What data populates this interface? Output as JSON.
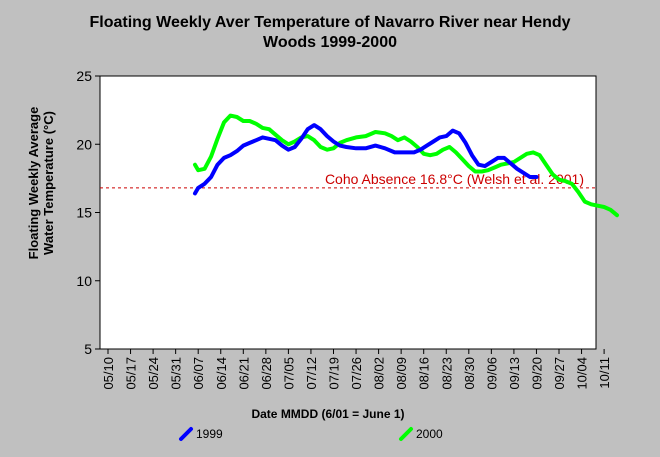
{
  "chart_data": {
    "type": "line",
    "title_line1": "Floating Weekly Aver Temperature of Navarro River near Hendy",
    "title_line2": "Woods 1999-2000",
    "ylabel_line1": "Floating Weekly Average",
    "ylabel_line2": "Water Temperature (°C)",
    "xlabel": "Date MMDD (6/01 = June 1)",
    "ylim": [
      5,
      25
    ],
    "yticks": [
      5,
      10,
      15,
      20,
      25
    ],
    "xtick_labels": [
      "05/10",
      "05/17",
      "05/24",
      "05/31",
      "06/07",
      "06/14",
      "06/21",
      "06/28",
      "07/05",
      "07/12",
      "07/19",
      "07/26",
      "08/02",
      "08/09",
      "08/16",
      "08/23",
      "08/30",
      "09/06",
      "09/13",
      "09/20",
      "09/27",
      "10/04",
      "10/11"
    ],
    "grid": false,
    "legend_position": "bottom",
    "threshold": {
      "value": 16.8,
      "label": "Coho Absence 16.8°C (Welsh et al. 2001)",
      "color": "#cc0000"
    },
    "series": [
      {
        "name": "1999",
        "color": "#0000ff",
        "points": [
          [
            "06/06",
            16.4
          ],
          [
            "06/07",
            16.8
          ],
          [
            "06/09",
            17.1
          ],
          [
            "06/11",
            17.6
          ],
          [
            "06/13",
            18.5
          ],
          [
            "06/15",
            19.0
          ],
          [
            "06/17",
            19.2
          ],
          [
            "06/19",
            19.5
          ],
          [
            "06/21",
            19.9
          ],
          [
            "06/23",
            20.1
          ],
          [
            "06/25",
            20.3
          ],
          [
            "06/27",
            20.5
          ],
          [
            "06/29",
            20.4
          ],
          [
            "07/01",
            20.3
          ],
          [
            "07/03",
            19.9
          ],
          [
            "07/05",
            19.6
          ],
          [
            "07/07",
            19.8
          ],
          [
            "07/09",
            20.4
          ],
          [
            "07/11",
            21.1
          ],
          [
            "07/13",
            21.4
          ],
          [
            "07/15",
            21.1
          ],
          [
            "07/17",
            20.6
          ],
          [
            "07/19",
            20.2
          ],
          [
            "07/21",
            19.9
          ],
          [
            "07/23",
            19.8
          ],
          [
            "07/26",
            19.7
          ],
          [
            "07/29",
            19.7
          ],
          [
            "08/01",
            19.9
          ],
          [
            "08/04",
            19.7
          ],
          [
            "08/07",
            19.4
          ],
          [
            "08/10",
            19.4
          ],
          [
            "08/13",
            19.4
          ],
          [
            "08/15",
            19.6
          ],
          [
            "08/17",
            19.9
          ],
          [
            "08/19",
            20.2
          ],
          [
            "08/21",
            20.5
          ],
          [
            "08/23",
            20.6
          ],
          [
            "08/25",
            21.0
          ],
          [
            "08/27",
            20.8
          ],
          [
            "08/29",
            20.1
          ],
          [
            "08/31",
            19.2
          ],
          [
            "09/02",
            18.5
          ],
          [
            "09/04",
            18.4
          ],
          [
            "09/06",
            18.7
          ],
          [
            "09/08",
            19.0
          ],
          [
            "09/10",
            19.0
          ],
          [
            "09/12",
            18.6
          ],
          [
            "09/14",
            18.2
          ],
          [
            "09/16",
            17.9
          ],
          [
            "09/18",
            17.6
          ],
          [
            "09/20",
            17.6
          ]
        ]
      },
      {
        "name": "2000",
        "color": "#00ff00",
        "points": [
          [
            "06/06",
            18.5
          ],
          [
            "06/07",
            18.1
          ],
          [
            "06/09",
            18.2
          ],
          [
            "06/11",
            19.1
          ],
          [
            "06/13",
            20.4
          ],
          [
            "06/15",
            21.6
          ],
          [
            "06/17",
            22.1
          ],
          [
            "06/19",
            22.0
          ],
          [
            "06/21",
            21.7
          ],
          [
            "06/23",
            21.7
          ],
          [
            "06/25",
            21.5
          ],
          [
            "06/27",
            21.2
          ],
          [
            "06/29",
            21.1
          ],
          [
            "07/01",
            20.7
          ],
          [
            "07/03",
            20.3
          ],
          [
            "07/05",
            20.0
          ],
          [
            "07/07",
            20.2
          ],
          [
            "07/09",
            20.5
          ],
          [
            "07/11",
            20.6
          ],
          [
            "07/13",
            20.3
          ],
          [
            "07/15",
            19.8
          ],
          [
            "07/17",
            19.6
          ],
          [
            "07/19",
            19.7
          ],
          [
            "07/21",
            20.1
          ],
          [
            "07/23",
            20.3
          ],
          [
            "07/26",
            20.5
          ],
          [
            "07/29",
            20.6
          ],
          [
            "08/01",
            20.9
          ],
          [
            "08/04",
            20.8
          ],
          [
            "08/06",
            20.6
          ],
          [
            "08/08",
            20.3
          ],
          [
            "08/10",
            20.5
          ],
          [
            "08/12",
            20.2
          ],
          [
            "08/14",
            19.8
          ],
          [
            "08/16",
            19.3
          ],
          [
            "08/18",
            19.2
          ],
          [
            "08/20",
            19.3
          ],
          [
            "08/22",
            19.6
          ],
          [
            "08/24",
            19.8
          ],
          [
            "08/26",
            19.4
          ],
          [
            "08/28",
            18.9
          ],
          [
            "08/30",
            18.4
          ],
          [
            "09/01",
            18.0
          ],
          [
            "09/03",
            18.0
          ],
          [
            "09/05",
            18.1
          ],
          [
            "09/07",
            18.3
          ],
          [
            "09/09",
            18.5
          ],
          [
            "09/11",
            18.6
          ],
          [
            "09/13",
            18.7
          ],
          [
            "09/15",
            19.0
          ],
          [
            "09/17",
            19.3
          ],
          [
            "09/19",
            19.4
          ],
          [
            "09/21",
            19.2
          ],
          [
            "09/23",
            18.5
          ],
          [
            "09/25",
            17.8
          ],
          [
            "09/27",
            17.4
          ],
          [
            "09/29",
            17.3
          ],
          [
            "10/01",
            17.1
          ],
          [
            "10/03",
            16.5
          ],
          [
            "10/05",
            15.8
          ],
          [
            "10/07",
            15.6
          ],
          [
            "10/09",
            15.5
          ],
          [
            "10/11",
            15.4
          ],
          [
            "10/13",
            15.2
          ],
          [
            "10/15",
            14.8
          ]
        ]
      }
    ]
  }
}
